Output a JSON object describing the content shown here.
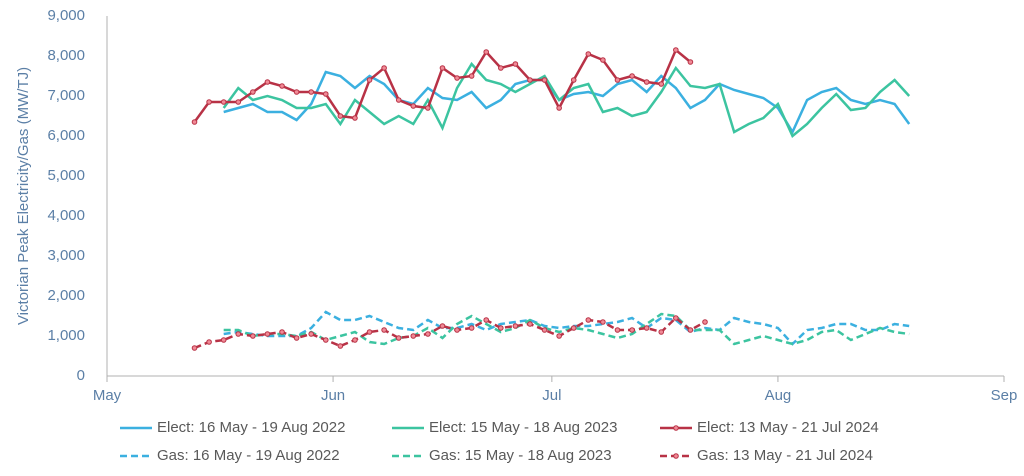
{
  "chart_data": {
    "type": "line",
    "y_label": "Victorian Peak Electricity/Gas (MW/TJ)",
    "x": [
      12,
      14,
      16,
      18,
      20,
      22,
      24,
      26,
      28,
      30,
      32,
      34,
      36,
      38,
      40,
      42,
      44,
      46,
      48,
      50,
      52,
      54,
      56,
      58,
      60,
      62,
      64,
      66,
      68,
      70,
      72,
      74,
      76,
      78,
      80,
      82,
      84,
      86,
      88,
      90,
      92,
      94,
      96,
      98,
      100,
      102,
      104,
      106,
      108,
      110
    ],
    "xlim": [
      0,
      123
    ],
    "xticks": [
      {
        "value": 0,
        "label": "May"
      },
      {
        "value": 31,
        "label": "Jun"
      },
      {
        "value": 61,
        "label": "Jul"
      },
      {
        "value": 92,
        "label": "Aug"
      },
      {
        "value": 123,
        "label": "Sep"
      }
    ],
    "ylim": [
      0,
      9000
    ],
    "yticks": [
      0,
      {
        "value": 1000,
        "label": "1,000"
      },
      {
        "value": 2000,
        "label": "2,000"
      },
      {
        "value": 3000,
        "label": "3,000"
      },
      {
        "value": 4000,
        "label": "4,000"
      },
      {
        "value": 5000,
        "label": "5,000"
      },
      {
        "value": 6000,
        "label": "6,000"
      },
      {
        "value": 7000,
        "label": "7,000"
      },
      {
        "value": 8000,
        "label": "8,000"
      },
      {
        "value": 9000,
        "label": "9,000"
      }
    ],
    "grid": false,
    "series": [
      {
        "name": "Elect: 16 May - 19 Aug 2022",
        "color": "#3bb0e0",
        "dashed": false,
        "markers": false,
        "values": [
          null,
          null,
          6600,
          6700,
          6800,
          6600,
          6600,
          6400,
          6800,
          7600,
          7500,
          7200,
          7500,
          7300,
          6900,
          6800,
          7200,
          6950,
          6900,
          7100,
          6700,
          6900,
          7300,
          7400,
          7400,
          6900,
          7050,
          7100,
          7000,
          7300,
          7400,
          7100,
          7500,
          7200,
          6700,
          6900,
          7300,
          7150,
          7050,
          6950,
          6700,
          6100,
          6900,
          7100,
          7200,
          6900,
          6800,
          6900,
          6800,
          6300
        ]
      },
      {
        "name": "Elect: 15 May - 18 Aug 2023",
        "color": "#3cc4a0",
        "dashed": false,
        "markers": false,
        "values": [
          null,
          null,
          6700,
          7200,
          6900,
          7000,
          6900,
          6700,
          6700,
          6800,
          6300,
          6900,
          6600,
          6300,
          6500,
          6300,
          6900,
          6200,
          7200,
          7800,
          7400,
          7300,
          7100,
          7300,
          7500,
          6900,
          7200,
          7300,
          6600,
          6700,
          6500,
          6600,
          7100,
          7700,
          7250,
          7200,
          7300,
          6100,
          6300,
          6450,
          6800,
          6000,
          6300,
          6700,
          7050,
          6650,
          6700,
          7100,
          7400,
          7000
        ]
      },
      {
        "name": "Elect: 13 May - 21 Jul 2024",
        "color": "#b83246",
        "dashed": false,
        "markers": true,
        "values": [
          6350,
          6850,
          6850,
          6850,
          7100,
          7350,
          7250,
          7100,
          7100,
          7050,
          6500,
          6450,
          7400,
          7700,
          6900,
          6750,
          6700,
          7700,
          7450,
          7500,
          8100,
          7700,
          7800,
          7400,
          7400,
          6700,
          7400,
          8050,
          7900,
          7400,
          7500,
          7350,
          7300,
          8150,
          7850,
          null,
          null,
          null,
          null,
          null,
          null,
          null,
          null,
          null,
          null,
          null,
          null,
          null,
          null,
          null
        ]
      },
      {
        "name": "Gas: 16 May - 19 Aug 2022",
        "color": "#3bb0e0",
        "dashed": true,
        "markers": false,
        "values": [
          null,
          null,
          1050,
          1100,
          1050,
          1000,
          1000,
          1000,
          1200,
          1600,
          1400,
          1400,
          1500,
          1350,
          1200,
          1150,
          1400,
          1200,
          1200,
          1300,
          1150,
          1300,
          1350,
          1400,
          1250,
          1200,
          1250,
          1250,
          1300,
          1350,
          1450,
          1200,
          1450,
          1400,
          1100,
          1200,
          1150,
          1450,
          1350,
          1300,
          1200,
          800,
          1150,
          1200,
          1300,
          1300,
          1150,
          1150,
          1300,
          1250
        ]
      },
      {
        "name": "Gas: 15 May - 18 Aug 2023",
        "color": "#3cc4a0",
        "dashed": true,
        "markers": false,
        "values": [
          null,
          null,
          1150,
          1150,
          1000,
          1050,
          1050,
          1000,
          1100,
          900,
          1000,
          1100,
          850,
          800,
          950,
          1000,
          1200,
          950,
          1300,
          1500,
          1300,
          1100,
          1200,
          1400,
          1200,
          1100,
          1200,
          1150,
          1050,
          950,
          1050,
          1300,
          1550,
          1500,
          1150,
          1150,
          1150,
          800,
          900,
          1000,
          900,
          800,
          900,
          1100,
          1150,
          900,
          1050,
          1200,
          1100,
          1050
        ]
      },
      {
        "name": "Gas: 13 May - 21 Jul 2024",
        "color": "#b83246",
        "dashed": true,
        "markers": true,
        "values": [
          700,
          850,
          900,
          1050,
          1000,
          1050,
          1100,
          950,
          1050,
          900,
          750,
          900,
          1100,
          1150,
          950,
          1000,
          1050,
          1250,
          1150,
          1200,
          1400,
          1200,
          1250,
          1300,
          1150,
          1000,
          1200,
          1400,
          1350,
          1150,
          1150,
          1200,
          1100,
          1450,
          1150,
          1350,
          null,
          null,
          null,
          null,
          null,
          null,
          null,
          null,
          null,
          null,
          null,
          null,
          null,
          null
        ]
      }
    ]
  }
}
